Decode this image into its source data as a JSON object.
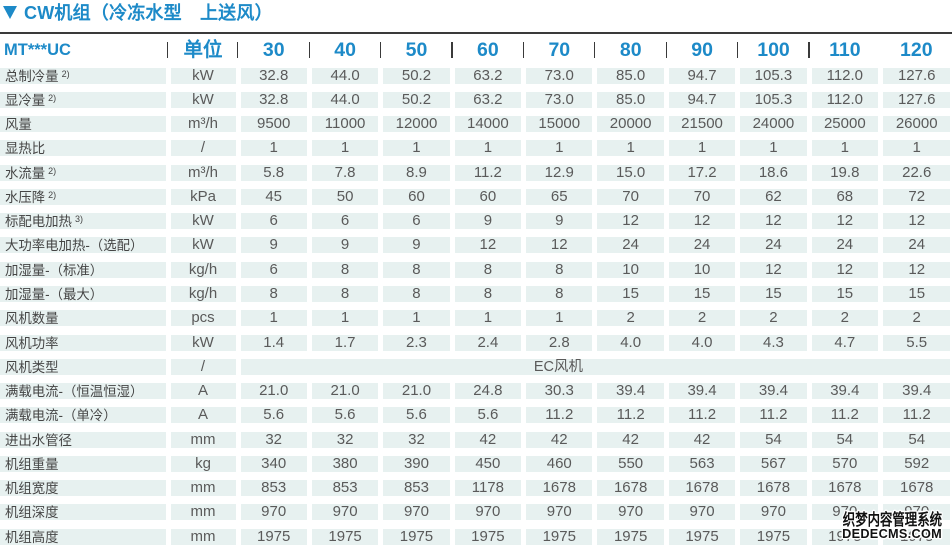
{
  "title": {
    "marker": "triangle-down-icon",
    "text": "CW机组（冷冻水型　上送风）"
  },
  "colors": {
    "accent_blue": "#1d8ac8",
    "cell_background": "#e7f1f0",
    "rule_dark": "#3a3a3a",
    "label_text": "#454545",
    "value_text": "#5a5a5a"
  },
  "chart_data": {
    "type": "table",
    "title": "CW机组（冷冻水型　上送风）",
    "header": {
      "model_label": "MT***UC",
      "unit_label": "单位",
      "size_columns": [
        "30",
        "40",
        "50",
        "60",
        "70",
        "80",
        "90",
        "100",
        "110",
        "120"
      ]
    },
    "rows": [
      {
        "label": "总制冷量",
        "sup": "2)",
        "unit": "kW",
        "values": [
          "32.8",
          "44.0",
          "50.2",
          "63.2",
          "73.0",
          "85.0",
          "94.7",
          "105.3",
          "112.0",
          "127.6"
        ]
      },
      {
        "label": "显冷量",
        "sup": "2)",
        "unit": "kW",
        "values": [
          "32.8",
          "44.0",
          "50.2",
          "63.2",
          "73.0",
          "85.0",
          "94.7",
          "105.3",
          "112.0",
          "127.6"
        ]
      },
      {
        "label": "风量",
        "sup": "",
        "unit": "m³/h",
        "values": [
          "9500",
          "11000",
          "12000",
          "14000",
          "15000",
          "20000",
          "21500",
          "24000",
          "25000",
          "26000"
        ]
      },
      {
        "label": "显热比",
        "sup": "",
        "unit": "/",
        "values": [
          "1",
          "1",
          "1",
          "1",
          "1",
          "1",
          "1",
          "1",
          "1",
          "1"
        ]
      },
      {
        "label": "水流量",
        "sup": "2)",
        "unit": "m³/h",
        "values": [
          "5.8",
          "7.8",
          "8.9",
          "11.2",
          "12.9",
          "15.0",
          "17.2",
          "18.6",
          "19.8",
          "22.6"
        ]
      },
      {
        "label": "水压降",
        "sup": "2)",
        "unit": "kPa",
        "values": [
          "45",
          "50",
          "60",
          "60",
          "65",
          "70",
          "70",
          "62",
          "68",
          "72"
        ]
      },
      {
        "label": "标配电加热",
        "sup": "3)",
        "unit": "kW",
        "values": [
          "6",
          "6",
          "6",
          "9",
          "9",
          "12",
          "12",
          "12",
          "12",
          "12"
        ]
      },
      {
        "label": "大功率电加热-（选配）",
        "sup": "",
        "unit": "kW",
        "values": [
          "9",
          "9",
          "9",
          "12",
          "12",
          "24",
          "24",
          "24",
          "24",
          "24"
        ]
      },
      {
        "label": "加湿量-（标准）",
        "sup": "",
        "unit": "kg/h",
        "values": [
          "6",
          "8",
          "8",
          "8",
          "8",
          "10",
          "10",
          "12",
          "12",
          "12"
        ]
      },
      {
        "label": "加湿量-（最大）",
        "sup": "",
        "unit": "kg/h",
        "values": [
          "8",
          "8",
          "8",
          "8",
          "8",
          "15",
          "15",
          "15",
          "15",
          "15"
        ]
      },
      {
        "label": "风机数量",
        "sup": "",
        "unit": "pcs",
        "values": [
          "1",
          "1",
          "1",
          "1",
          "1",
          "2",
          "2",
          "2",
          "2",
          "2"
        ]
      },
      {
        "label": "风机功率",
        "sup": "",
        "unit": "kW",
        "values": [
          "1.4",
          "1.7",
          "2.3",
          "2.4",
          "2.8",
          "4.0",
          "4.0",
          "4.3",
          "4.7",
          "5.5"
        ]
      },
      {
        "label": "风机类型",
        "sup": "",
        "unit": "/",
        "merged_value": "EC风机"
      },
      {
        "label": "满载电流-（恒温恒湿）",
        "sup": "",
        "unit": "A",
        "values": [
          "21.0",
          "21.0",
          "21.0",
          "24.8",
          "30.3",
          "39.4",
          "39.4",
          "39.4",
          "39.4",
          "39.4"
        ]
      },
      {
        "label": "满载电流-（单冷）",
        "sup": "",
        "unit": "A",
        "values": [
          "5.6",
          "5.6",
          "5.6",
          "5.6",
          "11.2",
          "11.2",
          "11.2",
          "11.2",
          "11.2",
          "11.2"
        ]
      },
      {
        "label": "进出水管径",
        "sup": "",
        "unit": "mm",
        "values": [
          "32",
          "32",
          "32",
          "42",
          "42",
          "42",
          "42",
          "54",
          "54",
          "54"
        ]
      },
      {
        "label": "机组重量",
        "sup": "",
        "unit": "kg",
        "values": [
          "340",
          "380",
          "390",
          "450",
          "460",
          "550",
          "563",
          "567",
          "570",
          "592"
        ]
      },
      {
        "label": "机组宽度",
        "sup": "",
        "unit": "mm",
        "values": [
          "853",
          "853",
          "853",
          "1178",
          "1678",
          "1678",
          "1678",
          "1678",
          "1678",
          "1678"
        ]
      },
      {
        "label": "机组深度",
        "sup": "",
        "unit": "mm",
        "values": [
          "970",
          "970",
          "970",
          "970",
          "970",
          "970",
          "970",
          "970",
          "970",
          "970"
        ]
      },
      {
        "label": "机组高度",
        "sup": "",
        "unit": "mm",
        "values": [
          "1975",
          "1975",
          "1975",
          "1975",
          "1975",
          "1975",
          "1975",
          "1975",
          "1975",
          "1975"
        ]
      }
    ]
  },
  "watermark": {
    "line1": "织梦内容管理系统",
    "line2": "DEDECMS.COM"
  }
}
